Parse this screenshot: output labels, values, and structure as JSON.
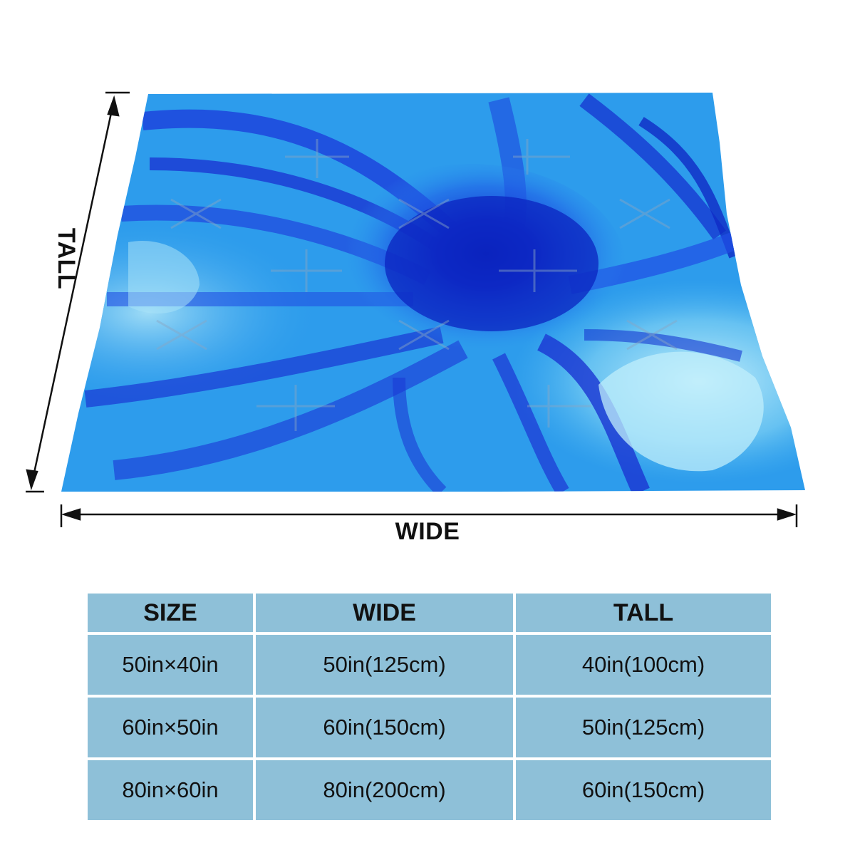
{
  "figure": {
    "wide_label": "WIDE",
    "tall_label": "TALL",
    "blanket_image": "blue-marble-fluid-art-blanket",
    "colors": {
      "deep_blue": "#1a1fd4",
      "royal_blue": "#1f4fe6",
      "sky_blue": "#2fa3f0",
      "light_cyan": "#8fd8f5",
      "table_cell": "#8ec0d8",
      "arrow_line": "#111111"
    }
  },
  "size_table": {
    "headers": [
      "SIZE",
      "WIDE",
      "TALL"
    ],
    "rows": [
      [
        "50in×40in",
        "50in(125cm)",
        "40in(100cm)"
      ],
      [
        "60in×50in",
        "60in(150cm)",
        "50in(125cm)"
      ],
      [
        "80in×60in",
        "80in(200cm)",
        "60in(150cm)"
      ]
    ]
  }
}
